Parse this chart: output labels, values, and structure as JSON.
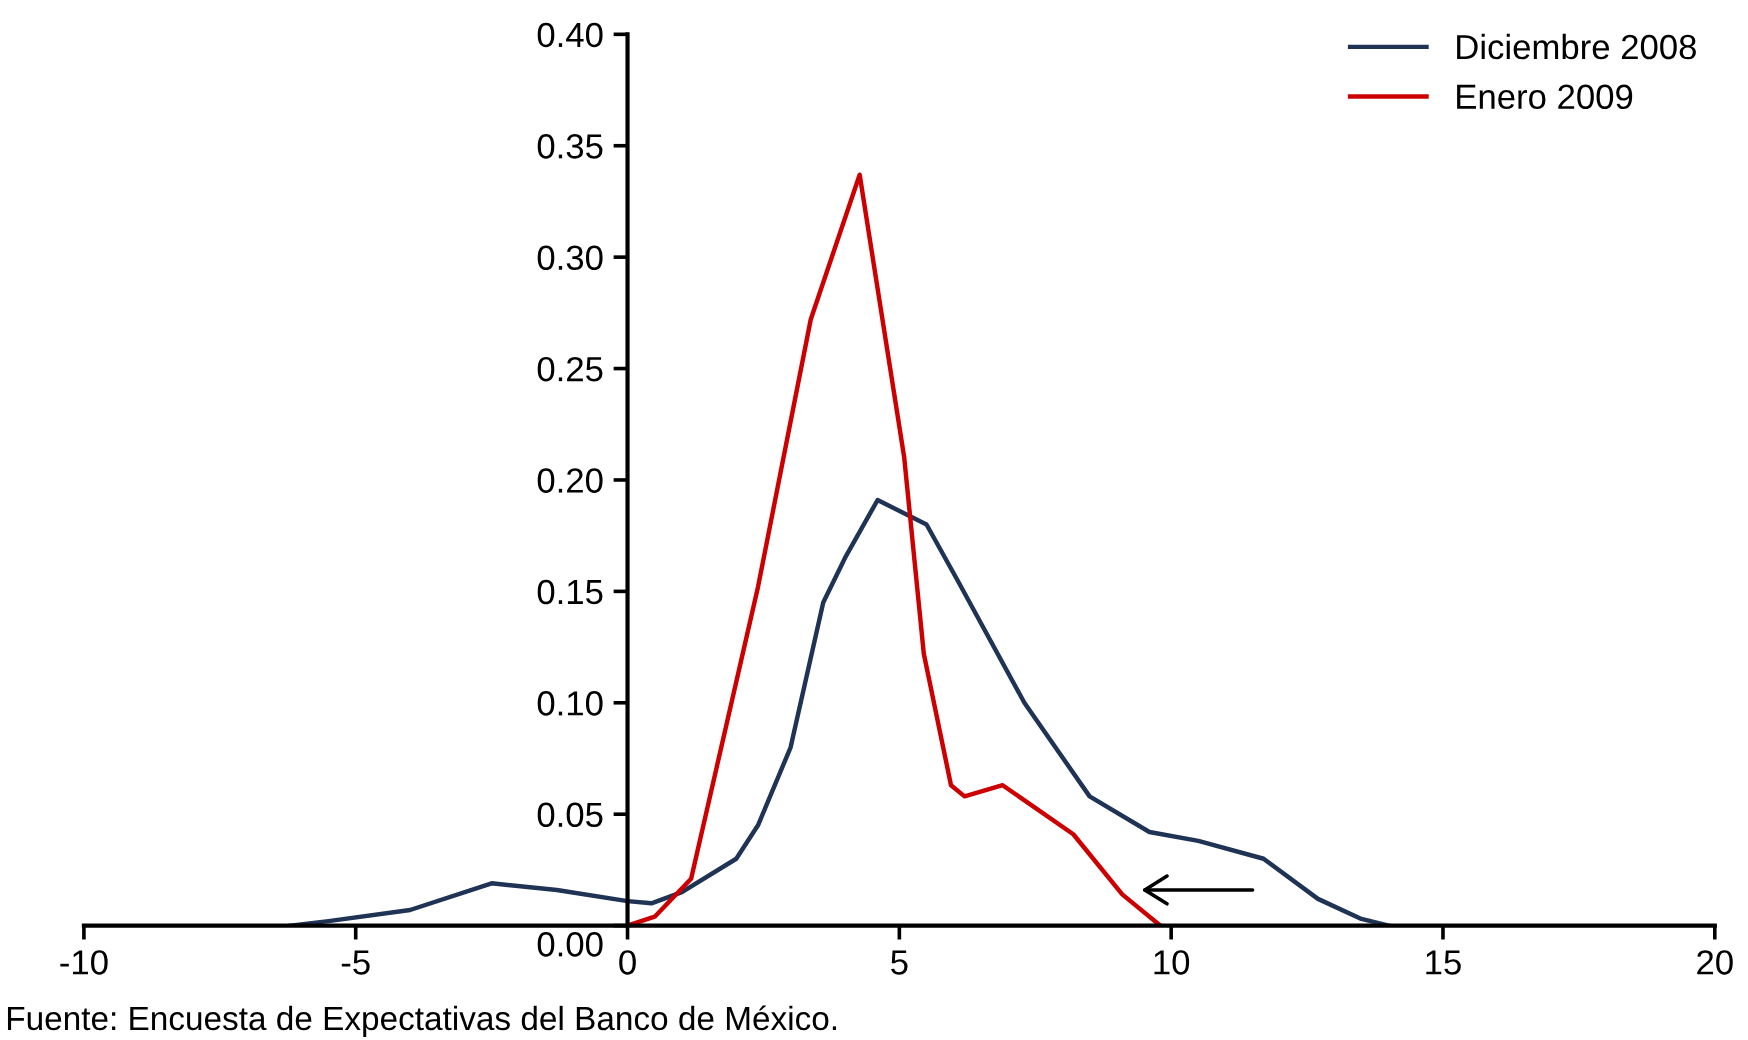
{
  "chart_data": {
    "type": "line",
    "legend": "top right",
    "grid": false,
    "line_style": "solid",
    "marker": "none",
    "xlim": [
      -10,
      20
    ],
    "xticks": [
      -10,
      -5,
      0,
      5,
      10,
      15,
      20
    ],
    "ylim": [
      0,
      0.4
    ],
    "yticks": [
      {
        "value": 0,
        "label": "0.00"
      },
      {
        "value": 0.05,
        "label": "0.05"
      },
      {
        "value": 0.1,
        "label": "0.10"
      },
      {
        "value": 0.15,
        "label": "0.15"
      },
      {
        "value": 0.2,
        "label": "0.20"
      },
      {
        "value": 0.25,
        "label": "0.25"
      },
      {
        "value": 0.3,
        "label": "0.30"
      },
      {
        "value": 0.35,
        "label": "0.35"
      },
      {
        "value": 0.4,
        "label": "0.40"
      }
    ],
    "series": [
      {
        "name": "Diciembre 2008",
        "color": "#1f3354",
        "x": [
          -6.2,
          -5.5,
          -4,
          -2.5,
          -1.3,
          0,
          0.44,
          1,
          2,
          2.4,
          3,
          3.6,
          4,
          4.6,
          5.5,
          6.07,
          7.3,
          8.5,
          9.6,
          10.5,
          11.7,
          12.7,
          13.5,
          14
        ],
        "values": [
          0,
          0.002,
          0.007,
          0.019,
          0.016,
          0.011,
          0.01,
          0.015,
          0.03,
          0.045,
          0.08,
          0.145,
          0.165,
          0.191,
          0.18,
          0.155,
          0.1,
          0.058,
          0.042,
          0.038,
          0.03,
          0.012,
          0.003,
          0
        ]
      },
      {
        "name": "Enero 2009",
        "color": "#cc0000",
        "x": [
          0,
          0.5,
          1.17,
          2.4,
          3.37,
          4.27,
          5.09,
          5.45,
          5.95,
          6.2,
          6.9,
          8.2,
          9.1,
          9.8
        ],
        "values": [
          0,
          0.004,
          0.021,
          0.152,
          0.272,
          0.337,
          0.21,
          0.122,
          0.063,
          0.058,
          0.063,
          0.041,
          0.014,
          0
        ]
      }
    ],
    "annotations": [
      "Fuente: Encuesta de Expectativas del Banco de México."
    ]
  }
}
